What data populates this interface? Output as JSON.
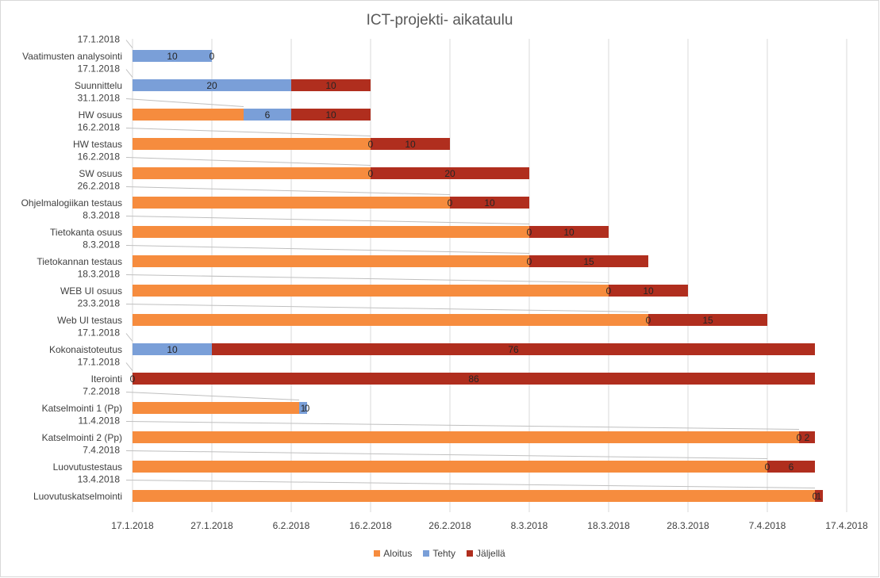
{
  "chart_data": {
    "type": "bar",
    "orientation": "horizontal",
    "stacked": true,
    "title": "ICT-projekti- aikataulu",
    "x_axis": {
      "start": "17.1.2018",
      "end": "17.4.2018",
      "tick_labels": [
        "17.1.2018",
        "27.1.2018",
        "6.2.2018",
        "16.2.2018",
        "26.2.2018",
        "8.3.2018",
        "18.3.2018",
        "28.3.2018",
        "7.4.2018",
        "17.4.2018"
      ],
      "unit": "days",
      "gridlines": true
    },
    "legend": {
      "position": "bottom"
    },
    "series": [
      {
        "name": "Aloitus",
        "color": "#f68c3e"
      },
      {
        "name": "Tehty",
        "color": "#7a9fd8"
      },
      {
        "name": "Jäljellä",
        "color": "#b02e1e"
      }
    ],
    "tasks": [
      {
        "name": "Vaatimusten analysointi",
        "start_label": "17.1.2018",
        "aloitus": 0,
        "tehty": 10,
        "jaljella": 0
      },
      {
        "name": "Suunnittelu",
        "start_label": "17.1.2018",
        "aloitus": 0,
        "tehty": 20,
        "jaljella": 10
      },
      {
        "name": "HW osuus",
        "start_label": "31.1.2018",
        "aloitus": 14,
        "tehty": 6,
        "jaljella": 10
      },
      {
        "name": "HW testaus",
        "start_label": "16.2.2018",
        "aloitus": 30,
        "tehty": 0,
        "jaljella": 10
      },
      {
        "name": "SW osuus",
        "start_label": "16.2.2018",
        "aloitus": 30,
        "tehty": 0,
        "jaljella": 20
      },
      {
        "name": "Ohjelmalogiikan testaus",
        "start_label": "26.2.2018",
        "aloitus": 40,
        "tehty": 0,
        "jaljella": 10
      },
      {
        "name": "Tietokanta osuus",
        "start_label": "8.3.2018",
        "aloitus": 50,
        "tehty": 0,
        "jaljella": 10
      },
      {
        "name": "Tietokannan testaus",
        "start_label": "8.3.2018",
        "aloitus": 50,
        "tehty": 0,
        "jaljella": 15
      },
      {
        "name": "WEB UI osuus",
        "start_label": "18.3.2018",
        "aloitus": 60,
        "tehty": 0,
        "jaljella": 10
      },
      {
        "name": "Web UI testaus",
        "start_label": "23.3.2018",
        "aloitus": 65,
        "tehty": 0,
        "jaljella": 15
      },
      {
        "name": "Kokonaistoteutus",
        "start_label": "17.1.2018",
        "aloitus": 0,
        "tehty": 10,
        "jaljella": 76
      },
      {
        "name": "Iterointi",
        "start_label": "17.1.2018",
        "aloitus": 0,
        "tehty": 0,
        "jaljella": 86
      },
      {
        "name": "Katselmointi 1 (Pp)",
        "start_label": "7.2.2018",
        "aloitus": 21,
        "tehty": 1,
        "jaljella": 0
      },
      {
        "name": "Katselmointi 2 (Pp)",
        "start_label": "11.4.2018",
        "aloitus": 84,
        "tehty": 0,
        "jaljella": 2
      },
      {
        "name": "Luovutustestaus",
        "start_label": "7.4.2018",
        "aloitus": 80,
        "tehty": 0,
        "jaljella": 6
      },
      {
        "name": "Luovutuskatselmointi",
        "start_label": "13.4.2018",
        "aloitus": 86,
        "tehty": 0,
        "jaljella": 1
      }
    ]
  }
}
